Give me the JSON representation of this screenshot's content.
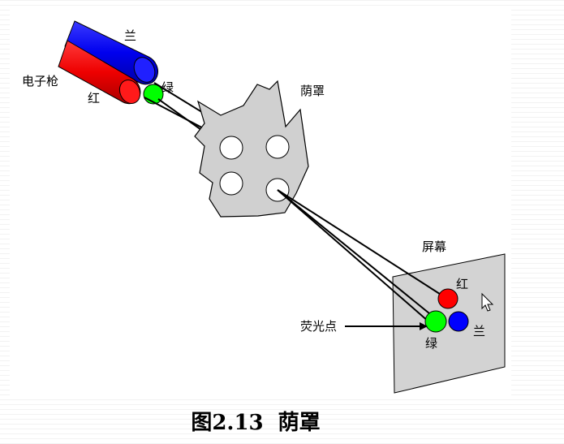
{
  "labels": {
    "gun": "电子枪",
    "blue": "兰",
    "red": "红",
    "green": "绿",
    "mask": "荫罩",
    "screen": "屏幕",
    "phosphor": "荧光点",
    "screen_red": "红",
    "screen_green": "绿",
    "screen_blue": "兰"
  },
  "caption": {
    "figure": "图2.13",
    "title": "荫罩"
  },
  "colors": {
    "red": "#ff0000",
    "green": "#00ff00",
    "blue": "#0000ff",
    "mask": "#d0d0d0",
    "screen": "#d3d3d3"
  }
}
